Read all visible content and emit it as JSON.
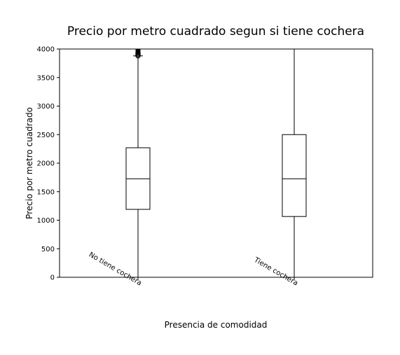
{
  "chart_data": {
    "type": "box",
    "title": "Precio por metro cuadrado segun si tiene cochera",
    "xlabel": "Presencia de comodidad",
    "ylabel": "Precio por metro cuadrado",
    "ylim": [
      0,
      4000
    ],
    "yticks": [
      0,
      500,
      1000,
      1500,
      2000,
      2500,
      3000,
      3500,
      4000
    ],
    "categories": [
      "No tiene cochera",
      "Tiene cochera"
    ],
    "boxes": [
      {
        "name": "No tiene cochera",
        "whisker_low": 0,
        "q1": 1190,
        "median": 1725,
        "q3": 2270,
        "whisker_high": 3880,
        "outliers_from": 3880,
        "outliers_to": 4000
      },
      {
        "name": "Tiene cochera",
        "whisker_low": 0,
        "q1": 1065,
        "median": 1725,
        "q3": 2500,
        "whisker_high": 4000
      }
    ],
    "grid": false
  }
}
